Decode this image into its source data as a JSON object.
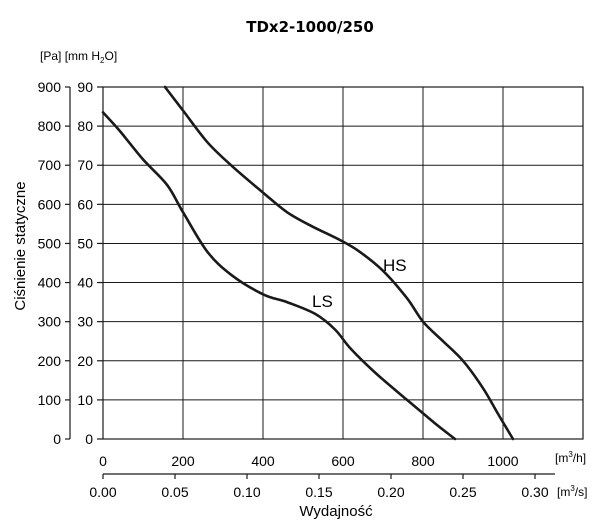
{
  "chart_data": {
    "type": "line",
    "title": "TDx2-1000/250",
    "ylabel": "Ciśnienie statyczne",
    "xlabel": "Wydajność",
    "y_unit_left": "[Pa]",
    "y_unit_right": "[mm H",
    "y_unit_right_sub": "2",
    "y_unit_right_end": "O]",
    "x_unit_primary": "[m",
    "x_unit_primary_sup": "3",
    "x_unit_primary_end": "/h]",
    "x_unit_secondary": "[m",
    "x_unit_secondary_sup": "3",
    "x_unit_secondary_end": "/s]",
    "xlim": [
      0,
      1200
    ],
    "ylim": [
      0,
      900
    ],
    "x_ticks_m3h": [
      "0",
      "200",
      "400",
      "600",
      "800",
      "1000"
    ],
    "x_ticks_m3s": [
      "0.00",
      "0.05",
      "0.10",
      "0.15",
      "0.20",
      "0.25",
      "0.30"
    ],
    "y_ticks_pa": [
      "0",
      "100",
      "200",
      "300",
      "400",
      "500",
      "600",
      "700",
      "800",
      "900"
    ],
    "y_ticks_mmh2o": [
      "0",
      "10",
      "20",
      "30",
      "40",
      "50",
      "60",
      "70",
      "80",
      "90"
    ],
    "grid": true,
    "series": [
      {
        "name": "LS",
        "x": [
          0,
          40,
          100,
          160,
          200,
          260,
          320,
          400,
          460,
          530,
          580,
          620,
          680,
          760,
          830,
          880
        ],
        "y": [
          835,
          790,
          715,
          650,
          580,
          480,
          420,
          370,
          350,
          320,
          280,
          230,
          170,
          100,
          40,
          0
        ]
      },
      {
        "name": "HS",
        "x": [
          155,
          200,
          260,
          320,
          400,
          460,
          520,
          590,
          640,
          700,
          760,
          800,
          850,
          900,
          950,
          990,
          1025
        ],
        "y": [
          900,
          840,
          760,
          700,
          630,
          580,
          545,
          510,
          480,
          430,
          360,
          300,
          250,
          200,
          130,
          60,
          0
        ]
      }
    ]
  }
}
